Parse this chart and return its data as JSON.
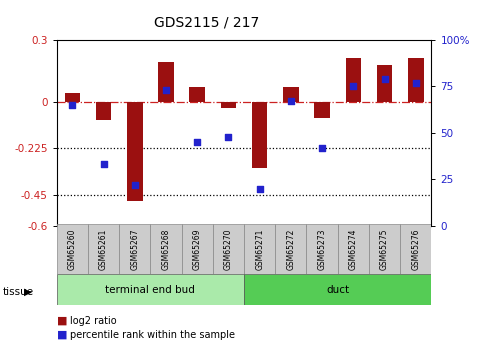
{
  "title": "GDS2115 / 217",
  "samples": [
    "GSM65260",
    "GSM65261",
    "GSM65267",
    "GSM65268",
    "GSM65269",
    "GSM65270",
    "GSM65271",
    "GSM65272",
    "GSM65273",
    "GSM65274",
    "GSM65275",
    "GSM65276"
  ],
  "log2_ratio": [
    0.04,
    -0.09,
    -0.48,
    0.19,
    0.07,
    -0.03,
    -0.32,
    0.07,
    -0.08,
    0.21,
    0.18,
    0.21
  ],
  "percentile": [
    65,
    33,
    22,
    73,
    45,
    48,
    20,
    67,
    42,
    75,
    79,
    77
  ],
  "tissue_groups": [
    {
      "label": "terminal end bud",
      "start": 0,
      "end": 5,
      "color": "#AAEAAA"
    },
    {
      "label": "duct",
      "start": 6,
      "end": 11,
      "color": "#55CC55"
    }
  ],
  "bar_color": "#9B1010",
  "dot_color": "#2222CC",
  "ylim_left": [
    -0.6,
    0.3
  ],
  "ylim_right": [
    0,
    100
  ],
  "yticks_left": [
    0.3,
    0.0,
    -0.225,
    -0.45,
    -0.6
  ],
  "ytick_labels_left": [
    "0.3",
    "0",
    "-0.225",
    "-0.45",
    "-0.6"
  ],
  "yticks_right": [
    100,
    75,
    50,
    25,
    0
  ],
  "ytick_labels_right": [
    "100%",
    "75",
    "50",
    "25",
    "0"
  ],
  "hline_y": 0.0,
  "dotted_lines": [
    -0.225,
    -0.45
  ],
  "background_color": "#ffffff",
  "bar_width": 0.5
}
